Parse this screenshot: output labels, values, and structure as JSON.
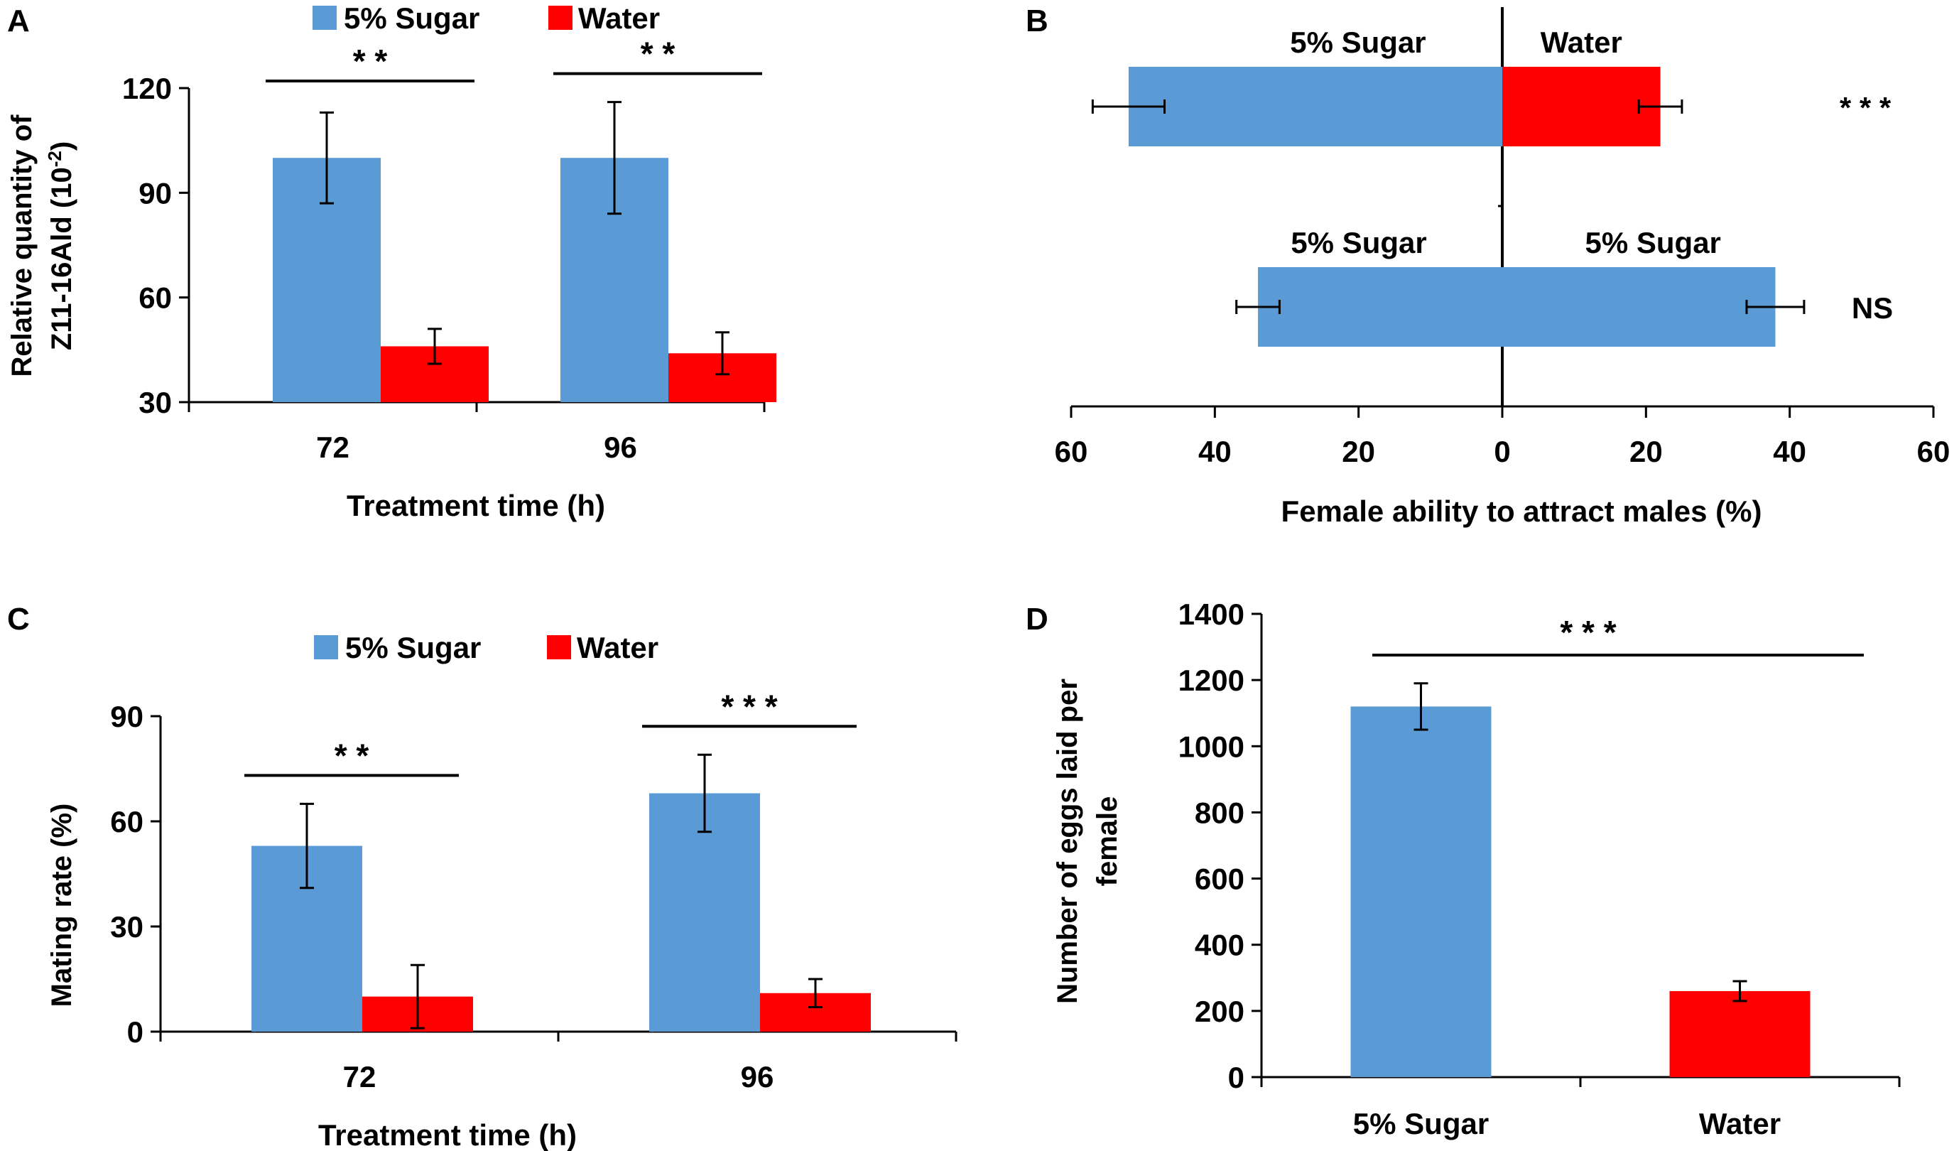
{
  "colors": {
    "sugar": "#5b9bd5",
    "water": "#ff0000",
    "ink": "#000000"
  },
  "chart_data": [
    {
      "type": "bar",
      "panel": "A",
      "legend": [
        "5% Sugar",
        "Water"
      ],
      "ylabel_line1": "Relative quantity of",
      "ylabel_line2": "Z11-16Ald (10",
      "ylabel_sup": "-2",
      "ylabel_tail": ")",
      "xlabel": "Treatment time  (h)",
      "ylim": [
        30,
        120
      ],
      "yticks": [
        30,
        60,
        90,
        120
      ],
      "categories": [
        "72",
        "96"
      ],
      "series": [
        {
          "name": "5% Sugar",
          "values": [
            100,
            100
          ],
          "errors": [
            13,
            16
          ]
        },
        {
          "name": "Water",
          "values": [
            46,
            44
          ],
          "errors": [
            5,
            6
          ]
        }
      ],
      "significance": [
        "**",
        "**"
      ]
    },
    {
      "type": "bar",
      "orientation": "horizontal-diverging",
      "panel": "B",
      "xlabel": "Female ability to attract males (%)",
      "xlim": [
        -60,
        60
      ],
      "xticks": [
        -60,
        -40,
        -20,
        0,
        20,
        40,
        60
      ],
      "tick_labels": [
        "60",
        "40",
        "20",
        "0",
        "20",
        "40",
        "60"
      ],
      "rows": [
        {
          "left_label": "5% Sugar",
          "right_label": "Water",
          "left": 52,
          "left_error": 5,
          "right": 22,
          "right_error": 3,
          "left_series": "5% Sugar",
          "right_series": "Water",
          "significance": "***"
        },
        {
          "left_label": "5% Sugar",
          "right_label": "5% Sugar",
          "left": 34,
          "left_error": 3,
          "right": 38,
          "right_error": 4,
          "left_series": "5% Sugar",
          "right_series": "5% Sugar",
          "significance": "NS"
        }
      ]
    },
    {
      "type": "bar",
      "panel": "C",
      "legend": [
        "5% Sugar",
        "Water"
      ],
      "ylabel": "Mating rate (%)",
      "xlabel": "Treatment time  (h)",
      "ylim": [
        0,
        90
      ],
      "yticks": [
        0,
        30,
        60,
        90
      ],
      "categories": [
        "72",
        "96"
      ],
      "series": [
        {
          "name": "5% Sugar",
          "values": [
            53,
            68
          ],
          "errors": [
            12,
            11
          ]
        },
        {
          "name": "Water",
          "values": [
            10,
            11
          ],
          "errors": [
            9,
            4
          ]
        }
      ],
      "significance": [
        "**",
        "***"
      ]
    },
    {
      "type": "bar",
      "panel": "D",
      "ylabel_line1": "Number of eggs laid per",
      "ylabel_line2": "female",
      "ylim": [
        0,
        1400
      ],
      "yticks": [
        0,
        200,
        400,
        600,
        800,
        1000,
        1200,
        1400
      ],
      "categories": [
        "5% Sugar",
        "Water"
      ],
      "values": [
        1120,
        260
      ],
      "errors": [
        70,
        30
      ],
      "significance": "***"
    }
  ]
}
